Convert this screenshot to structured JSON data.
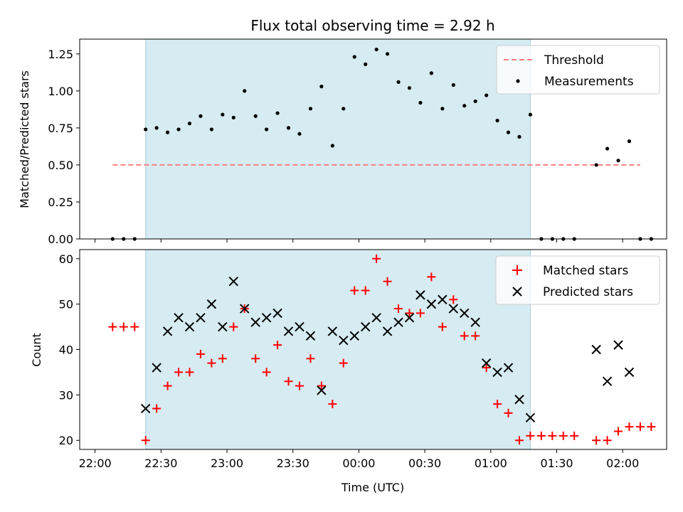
{
  "title": "Flux total observing time = 2.92 h",
  "chart_data": [
    {
      "type": "scatter",
      "title": "Flux total observing time = 2.92 h",
      "xlabel": "",
      "ylabel": "Matched/Predicted stars",
      "xlim": [
        "21:53",
        "02:20"
      ],
      "ylim": [
        0,
        1.35
      ],
      "yticks": [
        "0.00",
        "0.25",
        "0.50",
        "0.75",
        "1.00",
        "1.25"
      ],
      "shaded_interval": [
        "22:23",
        "01:18"
      ],
      "threshold": {
        "name": "Threshold",
        "value": 0.5,
        "x_range": [
          "22:08",
          "02:08"
        ],
        "color": "#ff7f7f"
      },
      "legend_position": "upper right",
      "series": [
        {
          "name": "Measurements",
          "color": "#000000",
          "marker": "dot",
          "points": [
            [
              "22:08",
              0.0
            ],
            [
              "22:13",
              0.0
            ],
            [
              "22:18",
              0.0
            ],
            [
              "22:23",
              0.74
            ],
            [
              "22:28",
              0.75
            ],
            [
              "22:33",
              0.72
            ],
            [
              "22:38",
              0.74
            ],
            [
              "22:43",
              0.78
            ],
            [
              "22:48",
              0.83
            ],
            [
              "22:53",
              0.74
            ],
            [
              "22:58",
              0.84
            ],
            [
              "23:03",
              0.82
            ],
            [
              "23:08",
              1.0
            ],
            [
              "23:13",
              0.83
            ],
            [
              "23:18",
              0.74
            ],
            [
              "23:23",
              0.85
            ],
            [
              "23:28",
              0.75
            ],
            [
              "23:33",
              0.71
            ],
            [
              "23:38",
              0.88
            ],
            [
              "23:43",
              1.03
            ],
            [
              "23:48",
              0.63
            ],
            [
              "23:53",
              0.88
            ],
            [
              "23:58",
              1.23
            ],
            [
              "00:03",
              1.18
            ],
            [
              "00:08",
              1.28
            ],
            [
              "00:13",
              1.25
            ],
            [
              "00:18",
              1.06
            ],
            [
              "00:23",
              1.02
            ],
            [
              "00:28",
              0.92
            ],
            [
              "00:33",
              1.12
            ],
            [
              "00:38",
              0.88
            ],
            [
              "00:43",
              1.04
            ],
            [
              "00:48",
              0.9
            ],
            [
              "00:53",
              0.93
            ],
            [
              "00:58",
              0.97
            ],
            [
              "01:03",
              0.8
            ],
            [
              "01:08",
              0.72
            ],
            [
              "01:13",
              0.69
            ],
            [
              "01:18",
              0.84
            ],
            [
              "01:23",
              0.0
            ],
            [
              "01:28",
              0.0
            ],
            [
              "01:33",
              0.0
            ],
            [
              "01:38",
              0.0
            ],
            [
              "01:48",
              0.5
            ],
            [
              "01:53",
              0.61
            ],
            [
              "01:58",
              0.53
            ],
            [
              "02:03",
              0.66
            ],
            [
              "02:08",
              0.0
            ],
            [
              "02:13",
              0.0
            ]
          ]
        }
      ]
    },
    {
      "type": "scatter",
      "xlabel": "Time (UTC)",
      "ylabel": "Count",
      "xlim": [
        "21:53",
        "02:20"
      ],
      "ylim": [
        18,
        62
      ],
      "yticks": [
        "20",
        "30",
        "40",
        "50",
        "60"
      ],
      "xticks": [
        "22:00",
        "22:30",
        "23:00",
        "23:30",
        "00:00",
        "00:30",
        "01:00",
        "01:30",
        "02:00"
      ],
      "shaded_interval": [
        "22:23",
        "01:18"
      ],
      "legend_position": "upper right",
      "series": [
        {
          "name": "Matched stars",
          "color": "#ff0000",
          "marker": "plus",
          "points": [
            [
              "22:08",
              45
            ],
            [
              "22:13",
              45
            ],
            [
              "22:18",
              45
            ],
            [
              "22:23",
              20
            ],
            [
              "22:28",
              27
            ],
            [
              "22:33",
              32
            ],
            [
              "22:38",
              35
            ],
            [
              "22:43",
              35
            ],
            [
              "22:48",
              39
            ],
            [
              "22:53",
              37
            ],
            [
              "22:58",
              38
            ],
            [
              "23:03",
              45
            ],
            [
              "23:08",
              49
            ],
            [
              "23:13",
              38
            ],
            [
              "23:18",
              35
            ],
            [
              "23:23",
              41
            ],
            [
              "23:28",
              33
            ],
            [
              "23:33",
              32
            ],
            [
              "23:38",
              38
            ],
            [
              "23:43",
              32
            ],
            [
              "23:48",
              28
            ],
            [
              "23:53",
              37
            ],
            [
              "23:58",
              53
            ],
            [
              "00:03",
              53
            ],
            [
              "00:08",
              60
            ],
            [
              "00:13",
              55
            ],
            [
              "00:18",
              49
            ],
            [
              "00:23",
              48
            ],
            [
              "00:28",
              48
            ],
            [
              "00:33",
              56
            ],
            [
              "00:38",
              45
            ],
            [
              "00:43",
              51
            ],
            [
              "00:48",
              43
            ],
            [
              "00:53",
              43
            ],
            [
              "00:58",
              36
            ],
            [
              "01:03",
              28
            ],
            [
              "01:08",
              26
            ],
            [
              "01:13",
              20
            ],
            [
              "01:18",
              21
            ],
            [
              "01:23",
              21
            ],
            [
              "01:28",
              21
            ],
            [
              "01:33",
              21
            ],
            [
              "01:38",
              21
            ],
            [
              "01:48",
              20
            ],
            [
              "01:53",
              20
            ],
            [
              "01:58",
              22
            ],
            [
              "02:03",
              23
            ],
            [
              "02:08",
              23
            ],
            [
              "02:13",
              23
            ]
          ]
        },
        {
          "name": "Predicted stars",
          "color": "#000000",
          "marker": "x",
          "points": [
            [
              "22:23",
              27
            ],
            [
              "22:28",
              36
            ],
            [
              "22:33",
              44
            ],
            [
              "22:38",
              47
            ],
            [
              "22:43",
              45
            ],
            [
              "22:48",
              47
            ],
            [
              "22:53",
              50
            ],
            [
              "22:58",
              45
            ],
            [
              "23:03",
              55
            ],
            [
              "23:08",
              49
            ],
            [
              "23:13",
              46
            ],
            [
              "23:18",
              47
            ],
            [
              "23:23",
              48
            ],
            [
              "23:28",
              44
            ],
            [
              "23:33",
              45
            ],
            [
              "23:38",
              43
            ],
            [
              "23:43",
              31
            ],
            [
              "23:48",
              44
            ],
            [
              "23:53",
              42
            ],
            [
              "23:58",
              43
            ],
            [
              "00:03",
              45
            ],
            [
              "00:08",
              47
            ],
            [
              "00:13",
              44
            ],
            [
              "00:18",
              46
            ],
            [
              "00:23",
              47
            ],
            [
              "00:28",
              52
            ],
            [
              "00:33",
              50
            ],
            [
              "00:38",
              51
            ],
            [
              "00:43",
              49
            ],
            [
              "00:48",
              48
            ],
            [
              "00:53",
              46
            ],
            [
              "00:58",
              37
            ],
            [
              "01:03",
              35
            ],
            [
              "01:08",
              36
            ],
            [
              "01:13",
              29
            ],
            [
              "01:18",
              25
            ],
            [
              "01:48",
              40
            ],
            [
              "01:53",
              33
            ],
            [
              "01:58",
              41
            ],
            [
              "02:03",
              35
            ]
          ]
        }
      ]
    }
  ]
}
